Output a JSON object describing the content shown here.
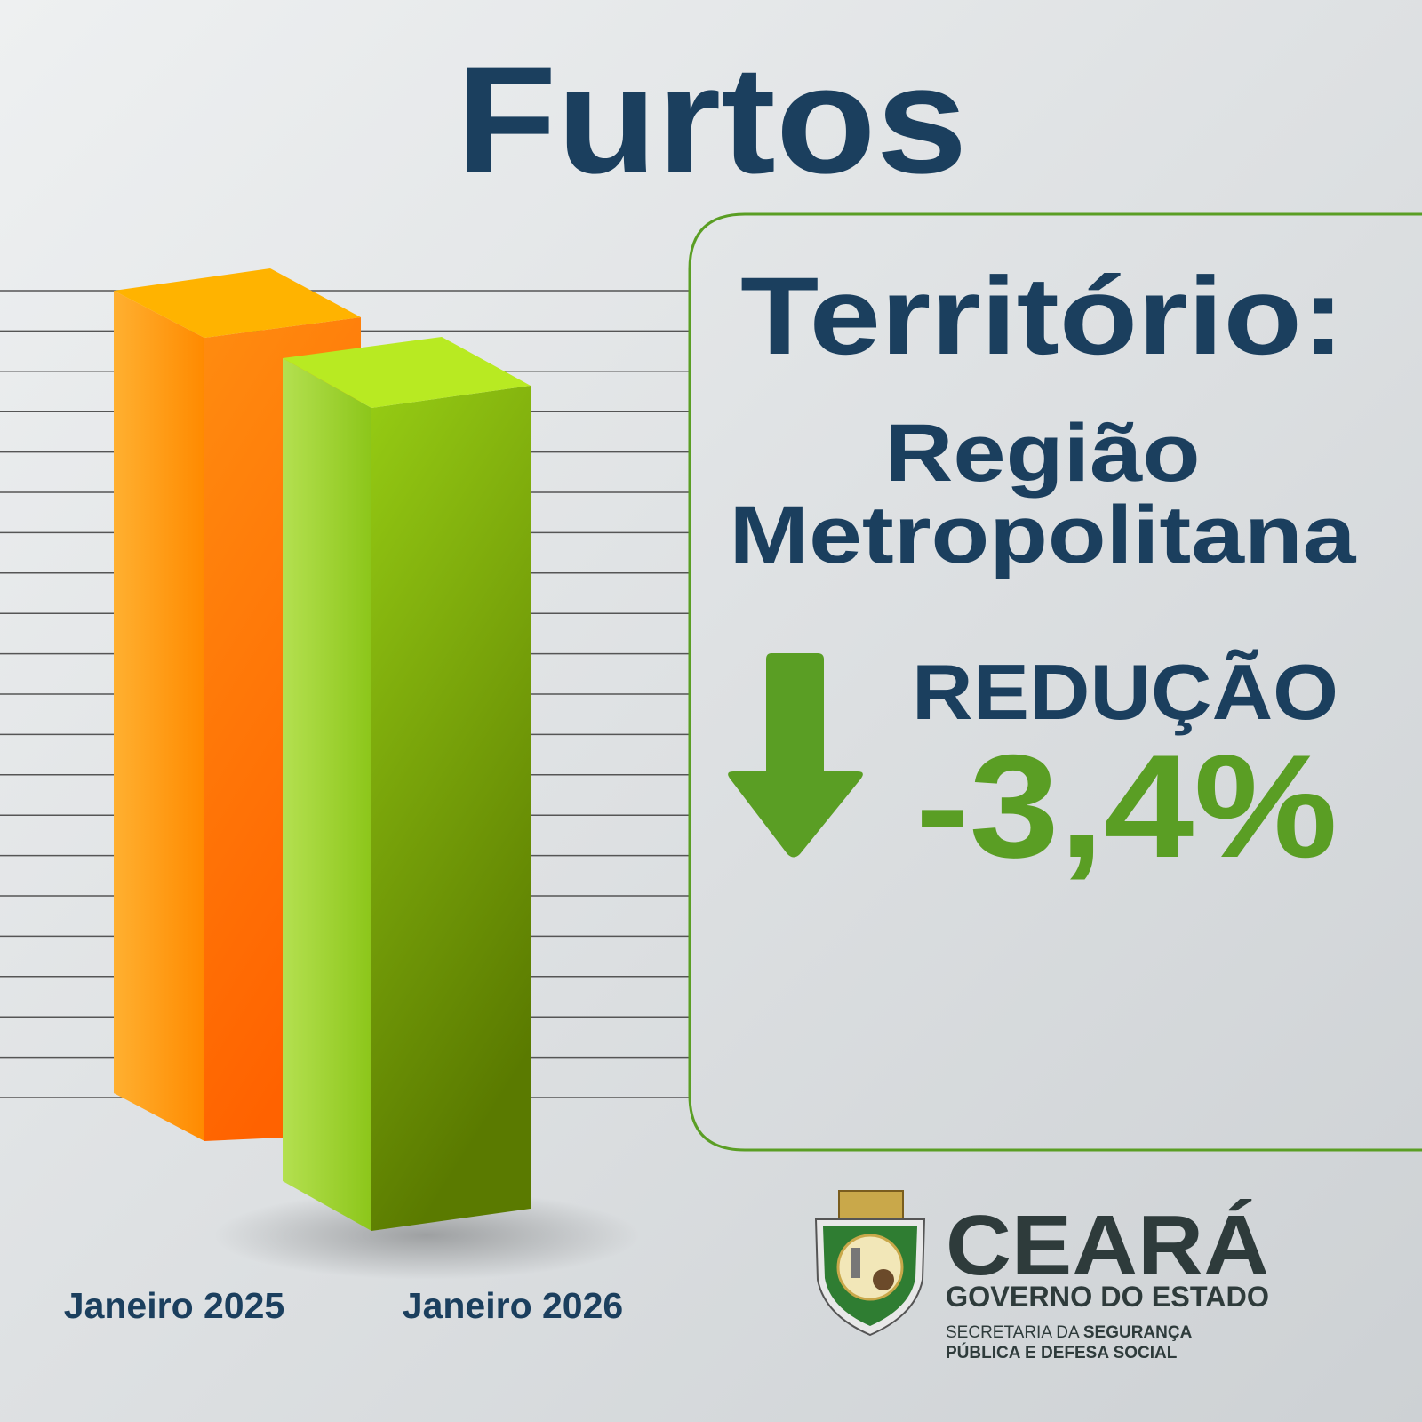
{
  "header": {
    "title": "Furtos"
  },
  "panel": {
    "heading": "Território:",
    "region_lines": [
      "Região",
      "Metropolitana"
    ],
    "change_label": "REDUÇÃO",
    "change_value": "-3,4%"
  },
  "bars": {
    "labels": [
      "Janeiro 2025",
      "Janeiro 2026"
    ]
  },
  "logo": {
    "name": "CEARÁ",
    "subtitle": "GOVERNO DO ESTADO",
    "department_line1_prefix": "SECRETARIA DA ",
    "department_line1_bold": "SEGURANÇA",
    "department_line2": "PÚBLICA E DEFESA SOCIAL"
  }
}
